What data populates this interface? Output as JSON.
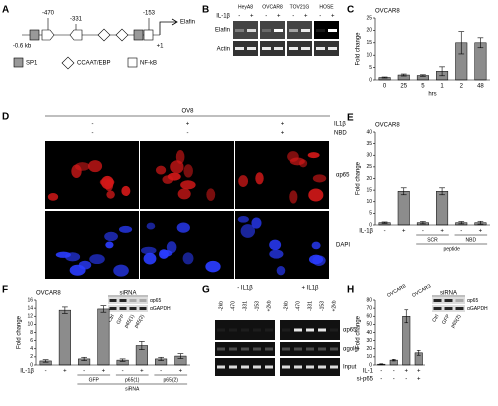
{
  "panel_labels": [
    "A",
    "B",
    "C",
    "D",
    "E",
    "F",
    "G",
    "H"
  ],
  "promoter": {
    "sites": [
      "-470",
      "-331",
      "-153"
    ],
    "gene": "Elafin",
    "start": "-0.6 kb",
    "tss": "+1",
    "legend": [
      "SP1",
      "CCAAT/EBP",
      "NF-kB"
    ]
  },
  "gel_b": {
    "treatment": "IL-1β",
    "lanes": [
      "HeyA8",
      "OVCAR8",
      "TOV21G",
      "HOSE"
    ],
    "signs": [
      "-",
      "+"
    ],
    "rows": [
      "Elafin",
      "Actin"
    ]
  },
  "microscopy": {
    "cell": "OV8",
    "rows": [
      {
        "label": "IL1β",
        "values": [
          "-",
          "+",
          "+"
        ]
      },
      {
        "label": "NBD",
        "values": [
          "-",
          "-",
          "+"
        ]
      }
    ],
    "stains": [
      "αp65",
      "DAPI"
    ]
  },
  "gel_g": {
    "groups": [
      "- IL1β",
      "+ IL1β"
    ],
    "lanes": [
      "-2kb",
      "-470",
      "-331",
      "-153",
      "+2kb"
    ],
    "rows": [
      "αp65",
      "αgolgi",
      "Input"
    ]
  },
  "blot_f": {
    "title": "siRNA",
    "lanes": [
      "Ctrl",
      "GFP",
      "p65(1)",
      "p65(2)"
    ],
    "rows": [
      "αp65",
      "αGAPDH"
    ]
  },
  "blot_h": {
    "title": "siRNA",
    "lanes": [
      "Ctrl",
      "GFP",
      "p65(2)"
    ],
    "rows": [
      "αp65",
      "αGAPDH"
    ]
  },
  "chart_data": [
    {
      "type": "bar",
      "title": "OVCAR8",
      "y_label": "Fold change",
      "x_label": "hrs",
      "color": "#8c8c8c",
      "categories": [
        "0",
        "25",
        "5",
        "1",
        "2",
        "48"
      ],
      "values": [
        1,
        2,
        1.8,
        3.5,
        15,
        15
      ],
      "errors": [
        0.2,
        0.4,
        0.3,
        1.8,
        4.5,
        2
      ],
      "ylim": [
        0,
        25
      ],
      "yticks": [
        0,
        5,
        10,
        15,
        20,
        25
      ]
    },
    {
      "type": "bar",
      "title": "OVCAR8",
      "y_label": "Fold change",
      "row_label": "IL-1β",
      "color": "#8c8c8c",
      "categories": [
        "-",
        "+",
        "-",
        "+",
        "-",
        "+"
      ],
      "values": [
        1,
        14.5,
        1,
        14.5,
        1,
        1
      ],
      "errors": [
        0.3,
        1.5,
        0.5,
        1.5,
        0.5,
        0.6
      ],
      "group_labels": [
        {
          "text": "SCR",
          "span": [
            2,
            3
          ]
        },
        {
          "text": "NBD",
          "span": [
            4,
            5
          ]
        }
      ],
      "super_labels": [
        {
          "text": "peptide",
          "span": [
            2,
            5
          ]
        }
      ],
      "ylim": [
        0,
        40
      ],
      "yticks": [
        0,
        5,
        10,
        15,
        20,
        25,
        30,
        35,
        40
      ]
    },
    {
      "type": "bar",
      "title": "OVCAR8",
      "y_label": "Fold change",
      "row_label": "IL-1β",
      "color": "#8c8c8c",
      "categories": [
        "-",
        "+",
        "-",
        "+",
        "-",
        "+",
        "-",
        "+"
      ],
      "values": [
        1,
        13.5,
        1.5,
        13.8,
        1.2,
        4.8,
        1.5,
        2.2
      ],
      "errors": [
        0.3,
        0.8,
        0.4,
        0.8,
        0.3,
        1,
        0.4,
        0.6
      ],
      "group_labels": [
        {
          "text": "GFP",
          "span": [
            2,
            3
          ]
        },
        {
          "text": "p65(1)",
          "span": [
            4,
            5
          ]
        },
        {
          "text": "p65(2)",
          "span": [
            6,
            7
          ]
        }
      ],
      "super_labels": [
        {
          "text": "siRNA",
          "span": [
            2,
            7
          ]
        }
      ],
      "ylim": [
        0,
        16
      ],
      "yticks": [
        0,
        2,
        4,
        6,
        8,
        10,
        12,
        14,
        16
      ]
    },
    {
      "type": "bar",
      "y_label": "Fold change",
      "row_label": "IL-1",
      "color": "#8c8c8c",
      "categories": [
        "-",
        "-",
        "+",
        "+"
      ],
      "values": [
        1,
        6,
        60,
        15
      ],
      "errors": [
        0.5,
        1,
        8,
        3
      ],
      "extra_rows": [
        {
          "label": "si-p65",
          "values": [
            "-",
            "-",
            "-",
            "+"
          ]
        }
      ],
      "top_labels": [
        {
          "text": "OVCAR8",
          "span": [
            0,
            1
          ]
        },
        {
          "text": "OVCAR3",
          "span": [
            2,
            3
          ]
        }
      ],
      "ylim": [
        0,
        80
      ],
      "yticks": [
        0,
        10,
        20,
        30,
        40,
        50,
        60,
        70,
        80
      ]
    }
  ]
}
